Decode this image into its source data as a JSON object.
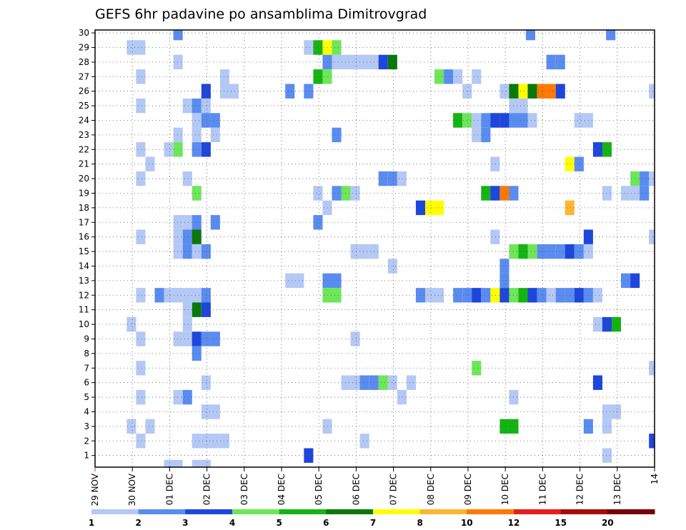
{
  "chart_data": {
    "type": "heatmap",
    "title": "GEFS 6hr padavine po ansamblima Dimitrovgrad",
    "xlabel": "",
    "ylabel": "",
    "x_ticks": [
      "29 NOV",
      "30 NOV",
      "01 DEC",
      "02 DEC",
      "03 DEC",
      "04 DEC",
      "05 DEC",
      "06 DEC",
      "07 DEC",
      "08 DEC",
      "09 DEC",
      "10 DEC",
      "11 DEC",
      "12 DEC",
      "13 DEC",
      "14"
    ],
    "x_range_days": [
      0,
      15
    ],
    "y_ticks": [
      1,
      2,
      3,
      4,
      5,
      6,
      7,
      8,
      9,
      10,
      11,
      12,
      13,
      14,
      15,
      16,
      17,
      18,
      19,
      20,
      21,
      22,
      23,
      24,
      25,
      26,
      27,
      28,
      29,
      30
    ],
    "y_range": [
      0.2,
      30.2
    ],
    "grid": true,
    "colorbar": {
      "labels": [
        "1",
        "2",
        "3",
        "4",
        "5",
        "6",
        "7",
        "8",
        "10",
        "12",
        "15",
        "20"
      ],
      "colors": [
        "#b4c8f5",
        "#5a8cf0",
        "#1e46dc",
        "#6ee65a",
        "#14b414",
        "#0a780a",
        "#ffff00",
        "#ffb432",
        "#ff7800",
        "#e61e1e",
        "#aa0a0a",
        "#780000"
      ]
    },
    "cells": [
      {
        "d": 2.1,
        "m": 30,
        "c": 1
      },
      {
        "d": 11.55,
        "m": 30,
        "c": 1
      },
      {
        "d": 13.7,
        "m": 30,
        "c": 1
      },
      {
        "d": 0.85,
        "m": 29,
        "c": 0
      },
      {
        "d": 1.1,
        "m": 29,
        "c": 0
      },
      {
        "d": 5.6,
        "m": 29,
        "c": 0
      },
      {
        "d": 5.85,
        "m": 29,
        "c": 4
      },
      {
        "d": 6.1,
        "m": 29,
        "c": 6
      },
      {
        "d": 6.35,
        "m": 29,
        "c": 3
      },
      {
        "d": 2.1,
        "m": 28,
        "c": 0
      },
      {
        "d": 6.1,
        "m": 28,
        "c": 1
      },
      {
        "d": 6.35,
        "m": 28,
        "c": 0
      },
      {
        "d": 6.6,
        "m": 28,
        "c": 0
      },
      {
        "d": 6.85,
        "m": 28,
        "c": 0
      },
      {
        "d": 7.1,
        "m": 28,
        "c": 0
      },
      {
        "d": 7.35,
        "m": 28,
        "c": 0
      },
      {
        "d": 7.6,
        "m": 28,
        "c": 2
      },
      {
        "d": 7.85,
        "m": 28,
        "c": 5
      },
      {
        "d": 12.1,
        "m": 28,
        "c": 1
      },
      {
        "d": 12.35,
        "m": 28,
        "c": 1
      },
      {
        "d": 1.1,
        "m": 27,
        "c": 0
      },
      {
        "d": 3.35,
        "m": 27,
        "c": 0
      },
      {
        "d": 5.85,
        "m": 27,
        "c": 4
      },
      {
        "d": 6.1,
        "m": 27,
        "c": 3
      },
      {
        "d": 9.1,
        "m": 27,
        "c": 3
      },
      {
        "d": 9.35,
        "m": 27,
        "c": 1
      },
      {
        "d": 9.6,
        "m": 27,
        "c": 0
      },
      {
        "d": 10.1,
        "m": 27,
        "c": 0
      },
      {
        "d": 2.85,
        "m": 26,
        "c": 2
      },
      {
        "d": 3.35,
        "m": 26,
        "c": 0
      },
      {
        "d": 3.6,
        "m": 26,
        "c": 0
      },
      {
        "d": 5.1,
        "m": 26,
        "c": 1
      },
      {
        "d": 5.6,
        "m": 26,
        "c": 1
      },
      {
        "d": 9.85,
        "m": 26,
        "c": 0
      },
      {
        "d": 10.85,
        "m": 26,
        "c": 0
      },
      {
        "d": 11.1,
        "m": 26,
        "c": 5
      },
      {
        "d": 11.35,
        "m": 26,
        "c": 6
      },
      {
        "d": 11.6,
        "m": 26,
        "c": 5
      },
      {
        "d": 11.85,
        "m": 26,
        "c": 8
      },
      {
        "d": 12.1,
        "m": 26,
        "c": 8
      },
      {
        "d": 12.35,
        "m": 26,
        "c": 2
      },
      {
        "d": 14.85,
        "m": 26,
        "c": 0
      },
      {
        "d": 1.1,
        "m": 25,
        "c": 0
      },
      {
        "d": 2.35,
        "m": 25,
        "c": 0
      },
      {
        "d": 2.6,
        "m": 25,
        "c": 1
      },
      {
        "d": 2.85,
        "m": 25,
        "c": 0
      },
      {
        "d": 11.1,
        "m": 25,
        "c": 0
      },
      {
        "d": 11.35,
        "m": 25,
        "c": 0
      },
      {
        "d": 2.6,
        "m": 24,
        "c": 0
      },
      {
        "d": 2.85,
        "m": 24,
        "c": 1
      },
      {
        "d": 3.1,
        "m": 24,
        "c": 1
      },
      {
        "d": 9.6,
        "m": 24,
        "c": 4
      },
      {
        "d": 9.85,
        "m": 24,
        "c": 3
      },
      {
        "d": 10.1,
        "m": 24,
        "c": 0
      },
      {
        "d": 10.35,
        "m": 24,
        "c": 1
      },
      {
        "d": 10.6,
        "m": 24,
        "c": 2
      },
      {
        "d": 10.85,
        "m": 24,
        "c": 2
      },
      {
        "d": 11.1,
        "m": 24,
        "c": 1
      },
      {
        "d": 11.35,
        "m": 24,
        "c": 1
      },
      {
        "d": 11.6,
        "m": 24,
        "c": 0
      },
      {
        "d": 12.85,
        "m": 24,
        "c": 0
      },
      {
        "d": 13.1,
        "m": 24,
        "c": 0
      },
      {
        "d": 2.1,
        "m": 23,
        "c": 0
      },
      {
        "d": 2.6,
        "m": 23,
        "c": 0
      },
      {
        "d": 3.1,
        "m": 23,
        "c": 0
      },
      {
        "d": 6.35,
        "m": 23,
        "c": 1
      },
      {
        "d": 10.1,
        "m": 23,
        "c": 0
      },
      {
        "d": 10.35,
        "m": 23,
        "c": 1
      },
      {
        "d": 1.1,
        "m": 22,
        "c": 0
      },
      {
        "d": 1.85,
        "m": 22,
        "c": 0
      },
      {
        "d": 2.1,
        "m": 22,
        "c": 3
      },
      {
        "d": 2.6,
        "m": 22,
        "c": 1
      },
      {
        "d": 2.85,
        "m": 22,
        "c": 2
      },
      {
        "d": 13.35,
        "m": 22,
        "c": 2
      },
      {
        "d": 13.6,
        "m": 22,
        "c": 4
      },
      {
        "d": 1.35,
        "m": 21,
        "c": 0
      },
      {
        "d": 10.6,
        "m": 21,
        "c": 0
      },
      {
        "d": 12.6,
        "m": 21,
        "c": 6
      },
      {
        "d": 12.85,
        "m": 21,
        "c": 1
      },
      {
        "d": 1.1,
        "m": 20,
        "c": 0
      },
      {
        "d": 2.35,
        "m": 20,
        "c": 0
      },
      {
        "d": 7.6,
        "m": 20,
        "c": 1
      },
      {
        "d": 7.85,
        "m": 20,
        "c": 1
      },
      {
        "d": 8.1,
        "m": 20,
        "c": 0
      },
      {
        "d": 14.35,
        "m": 20,
        "c": 3
      },
      {
        "d": 14.6,
        "m": 20,
        "c": 1
      },
      {
        "d": 14.85,
        "m": 20,
        "c": 0
      },
      {
        "d": 2.6,
        "m": 19,
        "c": 3
      },
      {
        "d": 5.85,
        "m": 19,
        "c": 0
      },
      {
        "d": 6.35,
        "m": 19,
        "c": 1
      },
      {
        "d": 6.6,
        "m": 19,
        "c": 3
      },
      {
        "d": 6.85,
        "m": 19,
        "c": 0
      },
      {
        "d": 10.35,
        "m": 19,
        "c": 4
      },
      {
        "d": 10.6,
        "m": 19,
        "c": 2
      },
      {
        "d": 10.85,
        "m": 19,
        "c": 8
      },
      {
        "d": 11.1,
        "m": 19,
        "c": 1
      },
      {
        "d": 13.6,
        "m": 19,
        "c": 0
      },
      {
        "d": 14.1,
        "m": 19,
        "c": 0
      },
      {
        "d": 14.35,
        "m": 19,
        "c": 0
      },
      {
        "d": 14.6,
        "m": 19,
        "c": 1
      },
      {
        "d": 6.1,
        "m": 18,
        "c": 0
      },
      {
        "d": 8.6,
        "m": 18,
        "c": 2
      },
      {
        "d": 8.85,
        "m": 18,
        "c": 6
      },
      {
        "d": 9.1,
        "m": 18,
        "c": 6
      },
      {
        "d": 12.6,
        "m": 18,
        "c": 7
      },
      {
        "d": 2.1,
        "m": 17,
        "c": 0
      },
      {
        "d": 2.35,
        "m": 17,
        "c": 0
      },
      {
        "d": 2.6,
        "m": 17,
        "c": 1
      },
      {
        "d": 3.1,
        "m": 17,
        "c": 1
      },
      {
        "d": 5.85,
        "m": 17,
        "c": 1
      },
      {
        "d": 1.1,
        "m": 16,
        "c": 0
      },
      {
        "d": 2.1,
        "m": 16,
        "c": 0
      },
      {
        "d": 2.35,
        "m": 16,
        "c": 1
      },
      {
        "d": 2.6,
        "m": 16,
        "c": 5
      },
      {
        "d": 10.6,
        "m": 16,
        "c": 0
      },
      {
        "d": 13.1,
        "m": 16,
        "c": 2
      },
      {
        "d": 14.85,
        "m": 16,
        "c": 0
      },
      {
        "d": 2.1,
        "m": 15,
        "c": 0
      },
      {
        "d": 2.35,
        "m": 15,
        "c": 1
      },
      {
        "d": 2.6,
        "m": 15,
        "c": 0
      },
      {
        "d": 2.85,
        "m": 15,
        "c": 1
      },
      {
        "d": 6.85,
        "m": 15,
        "c": 0
      },
      {
        "d": 7.1,
        "m": 15,
        "c": 0
      },
      {
        "d": 7.35,
        "m": 15,
        "c": 0
      },
      {
        "d": 11.1,
        "m": 15,
        "c": 3
      },
      {
        "d": 11.35,
        "m": 15,
        "c": 4
      },
      {
        "d": 11.6,
        "m": 15,
        "c": 3
      },
      {
        "d": 11.85,
        "m": 15,
        "c": 1
      },
      {
        "d": 12.1,
        "m": 15,
        "c": 1
      },
      {
        "d": 12.35,
        "m": 15,
        "c": 1
      },
      {
        "d": 12.6,
        "m": 15,
        "c": 2
      },
      {
        "d": 12.85,
        "m": 15,
        "c": 1
      },
      {
        "d": 13.1,
        "m": 15,
        "c": 0
      },
      {
        "d": 7.85,
        "m": 14,
        "c": 0
      },
      {
        "d": 10.85,
        "m": 14,
        "c": 1
      },
      {
        "d": 5.1,
        "m": 13,
        "c": 0
      },
      {
        "d": 5.35,
        "m": 13,
        "c": 0
      },
      {
        "d": 6.1,
        "m": 13,
        "c": 1
      },
      {
        "d": 6.35,
        "m": 13,
        "c": 1
      },
      {
        "d": 10.85,
        "m": 13,
        "c": 1
      },
      {
        "d": 14.1,
        "m": 13,
        "c": 1
      },
      {
        "d": 14.35,
        "m": 13,
        "c": 2
      },
      {
        "d": 1.1,
        "m": 12,
        "c": 0
      },
      {
        "d": 1.6,
        "m": 12,
        "c": 1
      },
      {
        "d": 1.85,
        "m": 12,
        "c": 0
      },
      {
        "d": 2.1,
        "m": 12,
        "c": 0
      },
      {
        "d": 2.35,
        "m": 12,
        "c": 0
      },
      {
        "d": 2.6,
        "m": 12,
        "c": 0
      },
      {
        "d": 2.85,
        "m": 12,
        "c": 1
      },
      {
        "d": 6.1,
        "m": 12,
        "c": 3
      },
      {
        "d": 6.35,
        "m": 12,
        "c": 3
      },
      {
        "d": 8.6,
        "m": 12,
        "c": 1
      },
      {
        "d": 8.85,
        "m": 12,
        "c": 0
      },
      {
        "d": 9.1,
        "m": 12,
        "c": 0
      },
      {
        "d": 9.6,
        "m": 12,
        "c": 1
      },
      {
        "d": 9.85,
        "m": 12,
        "c": 1
      },
      {
        "d": 10.1,
        "m": 12,
        "c": 2
      },
      {
        "d": 10.35,
        "m": 12,
        "c": 1
      },
      {
        "d": 10.6,
        "m": 12,
        "c": 6
      },
      {
        "d": 10.85,
        "m": 12,
        "c": 2
      },
      {
        "d": 11.1,
        "m": 12,
        "c": 3
      },
      {
        "d": 11.35,
        "m": 12,
        "c": 4
      },
      {
        "d": 11.6,
        "m": 12,
        "c": 2
      },
      {
        "d": 11.85,
        "m": 12,
        "c": 1
      },
      {
        "d": 12.1,
        "m": 12,
        "c": 0
      },
      {
        "d": 12.35,
        "m": 12,
        "c": 1
      },
      {
        "d": 12.6,
        "m": 12,
        "c": 1
      },
      {
        "d": 12.85,
        "m": 12,
        "c": 2
      },
      {
        "d": 13.1,
        "m": 12,
        "c": 1
      },
      {
        "d": 13.35,
        "m": 12,
        "c": 0
      },
      {
        "d": 2.6,
        "m": 11,
        "c": 5
      },
      {
        "d": 2.85,
        "m": 11,
        "c": 2
      },
      {
        "d": 2.35,
        "m": 11,
        "c": 0
      },
      {
        "d": 0.85,
        "m": 10,
        "c": 0
      },
      {
        "d": 2.35,
        "m": 10,
        "c": 0
      },
      {
        "d": 13.35,
        "m": 10,
        "c": 0
      },
      {
        "d": 13.6,
        "m": 10,
        "c": 2
      },
      {
        "d": 13.85,
        "m": 10,
        "c": 4
      },
      {
        "d": 1.1,
        "m": 9,
        "c": 0
      },
      {
        "d": 2.1,
        "m": 9,
        "c": 0
      },
      {
        "d": 2.35,
        "m": 9,
        "c": 0
      },
      {
        "d": 2.6,
        "m": 9,
        "c": 2
      },
      {
        "d": 2.85,
        "m": 9,
        "c": 1
      },
      {
        "d": 3.1,
        "m": 9,
        "c": 1
      },
      {
        "d": 6.85,
        "m": 9,
        "c": 0
      },
      {
        "d": 2.6,
        "m": 8,
        "c": 1
      },
      {
        "d": 1.1,
        "m": 7,
        "c": 0
      },
      {
        "d": 10.1,
        "m": 7,
        "c": 3
      },
      {
        "d": 14.85,
        "m": 7,
        "c": 0
      },
      {
        "d": 2.85,
        "m": 6,
        "c": 0
      },
      {
        "d": 6.6,
        "m": 6,
        "c": 0
      },
      {
        "d": 6.85,
        "m": 6,
        "c": 0
      },
      {
        "d": 7.1,
        "m": 6,
        "c": 1
      },
      {
        "d": 7.35,
        "m": 6,
        "c": 1
      },
      {
        "d": 7.6,
        "m": 6,
        "c": 3
      },
      {
        "d": 7.85,
        "m": 6,
        "c": 0
      },
      {
        "d": 8.35,
        "m": 6,
        "c": 0
      },
      {
        "d": 13.35,
        "m": 6,
        "c": 2
      },
      {
        "d": 1.1,
        "m": 5,
        "c": 0
      },
      {
        "d": 2.1,
        "m": 5,
        "c": 0
      },
      {
        "d": 2.35,
        "m": 5,
        "c": 1
      },
      {
        "d": 8.1,
        "m": 5,
        "c": 0
      },
      {
        "d": 11.1,
        "m": 5,
        "c": 0
      },
      {
        "d": 2.85,
        "m": 4,
        "c": 0
      },
      {
        "d": 3.1,
        "m": 4,
        "c": 0
      },
      {
        "d": 13.6,
        "m": 4,
        "c": 0
      },
      {
        "d": 13.85,
        "m": 4,
        "c": 0
      },
      {
        "d": 0.85,
        "m": 3,
        "c": 0
      },
      {
        "d": 1.35,
        "m": 3,
        "c": 0
      },
      {
        "d": 6.1,
        "m": 3,
        "c": 0
      },
      {
        "d": 10.85,
        "m": 3,
        "c": 4
      },
      {
        "d": 11.1,
        "m": 3,
        "c": 4
      },
      {
        "d": 13.1,
        "m": 3,
        "c": 1
      },
      {
        "d": 13.6,
        "m": 3,
        "c": 0
      },
      {
        "d": 1.1,
        "m": 2,
        "c": 0
      },
      {
        "d": 2.6,
        "m": 2,
        "c": 0
      },
      {
        "d": 2.85,
        "m": 2,
        "c": 0
      },
      {
        "d": 3.1,
        "m": 2,
        "c": 0
      },
      {
        "d": 3.35,
        "m": 2,
        "c": 0
      },
      {
        "d": 7.1,
        "m": 2,
        "c": 0
      },
      {
        "d": 14.85,
        "m": 2,
        "c": 2
      },
      {
        "d": 5.6,
        "m": 1,
        "c": 2
      },
      {
        "d": 13.6,
        "m": 1,
        "c": 0
      },
      {
        "d": 1.85,
        "m": 0.2,
        "c": 0
      },
      {
        "d": 2.1,
        "m": 0.2,
        "c": 0
      },
      {
        "d": 2.6,
        "m": 0.2,
        "c": 0
      },
      {
        "d": 2.85,
        "m": 0.2,
        "c": 0
      }
    ]
  }
}
